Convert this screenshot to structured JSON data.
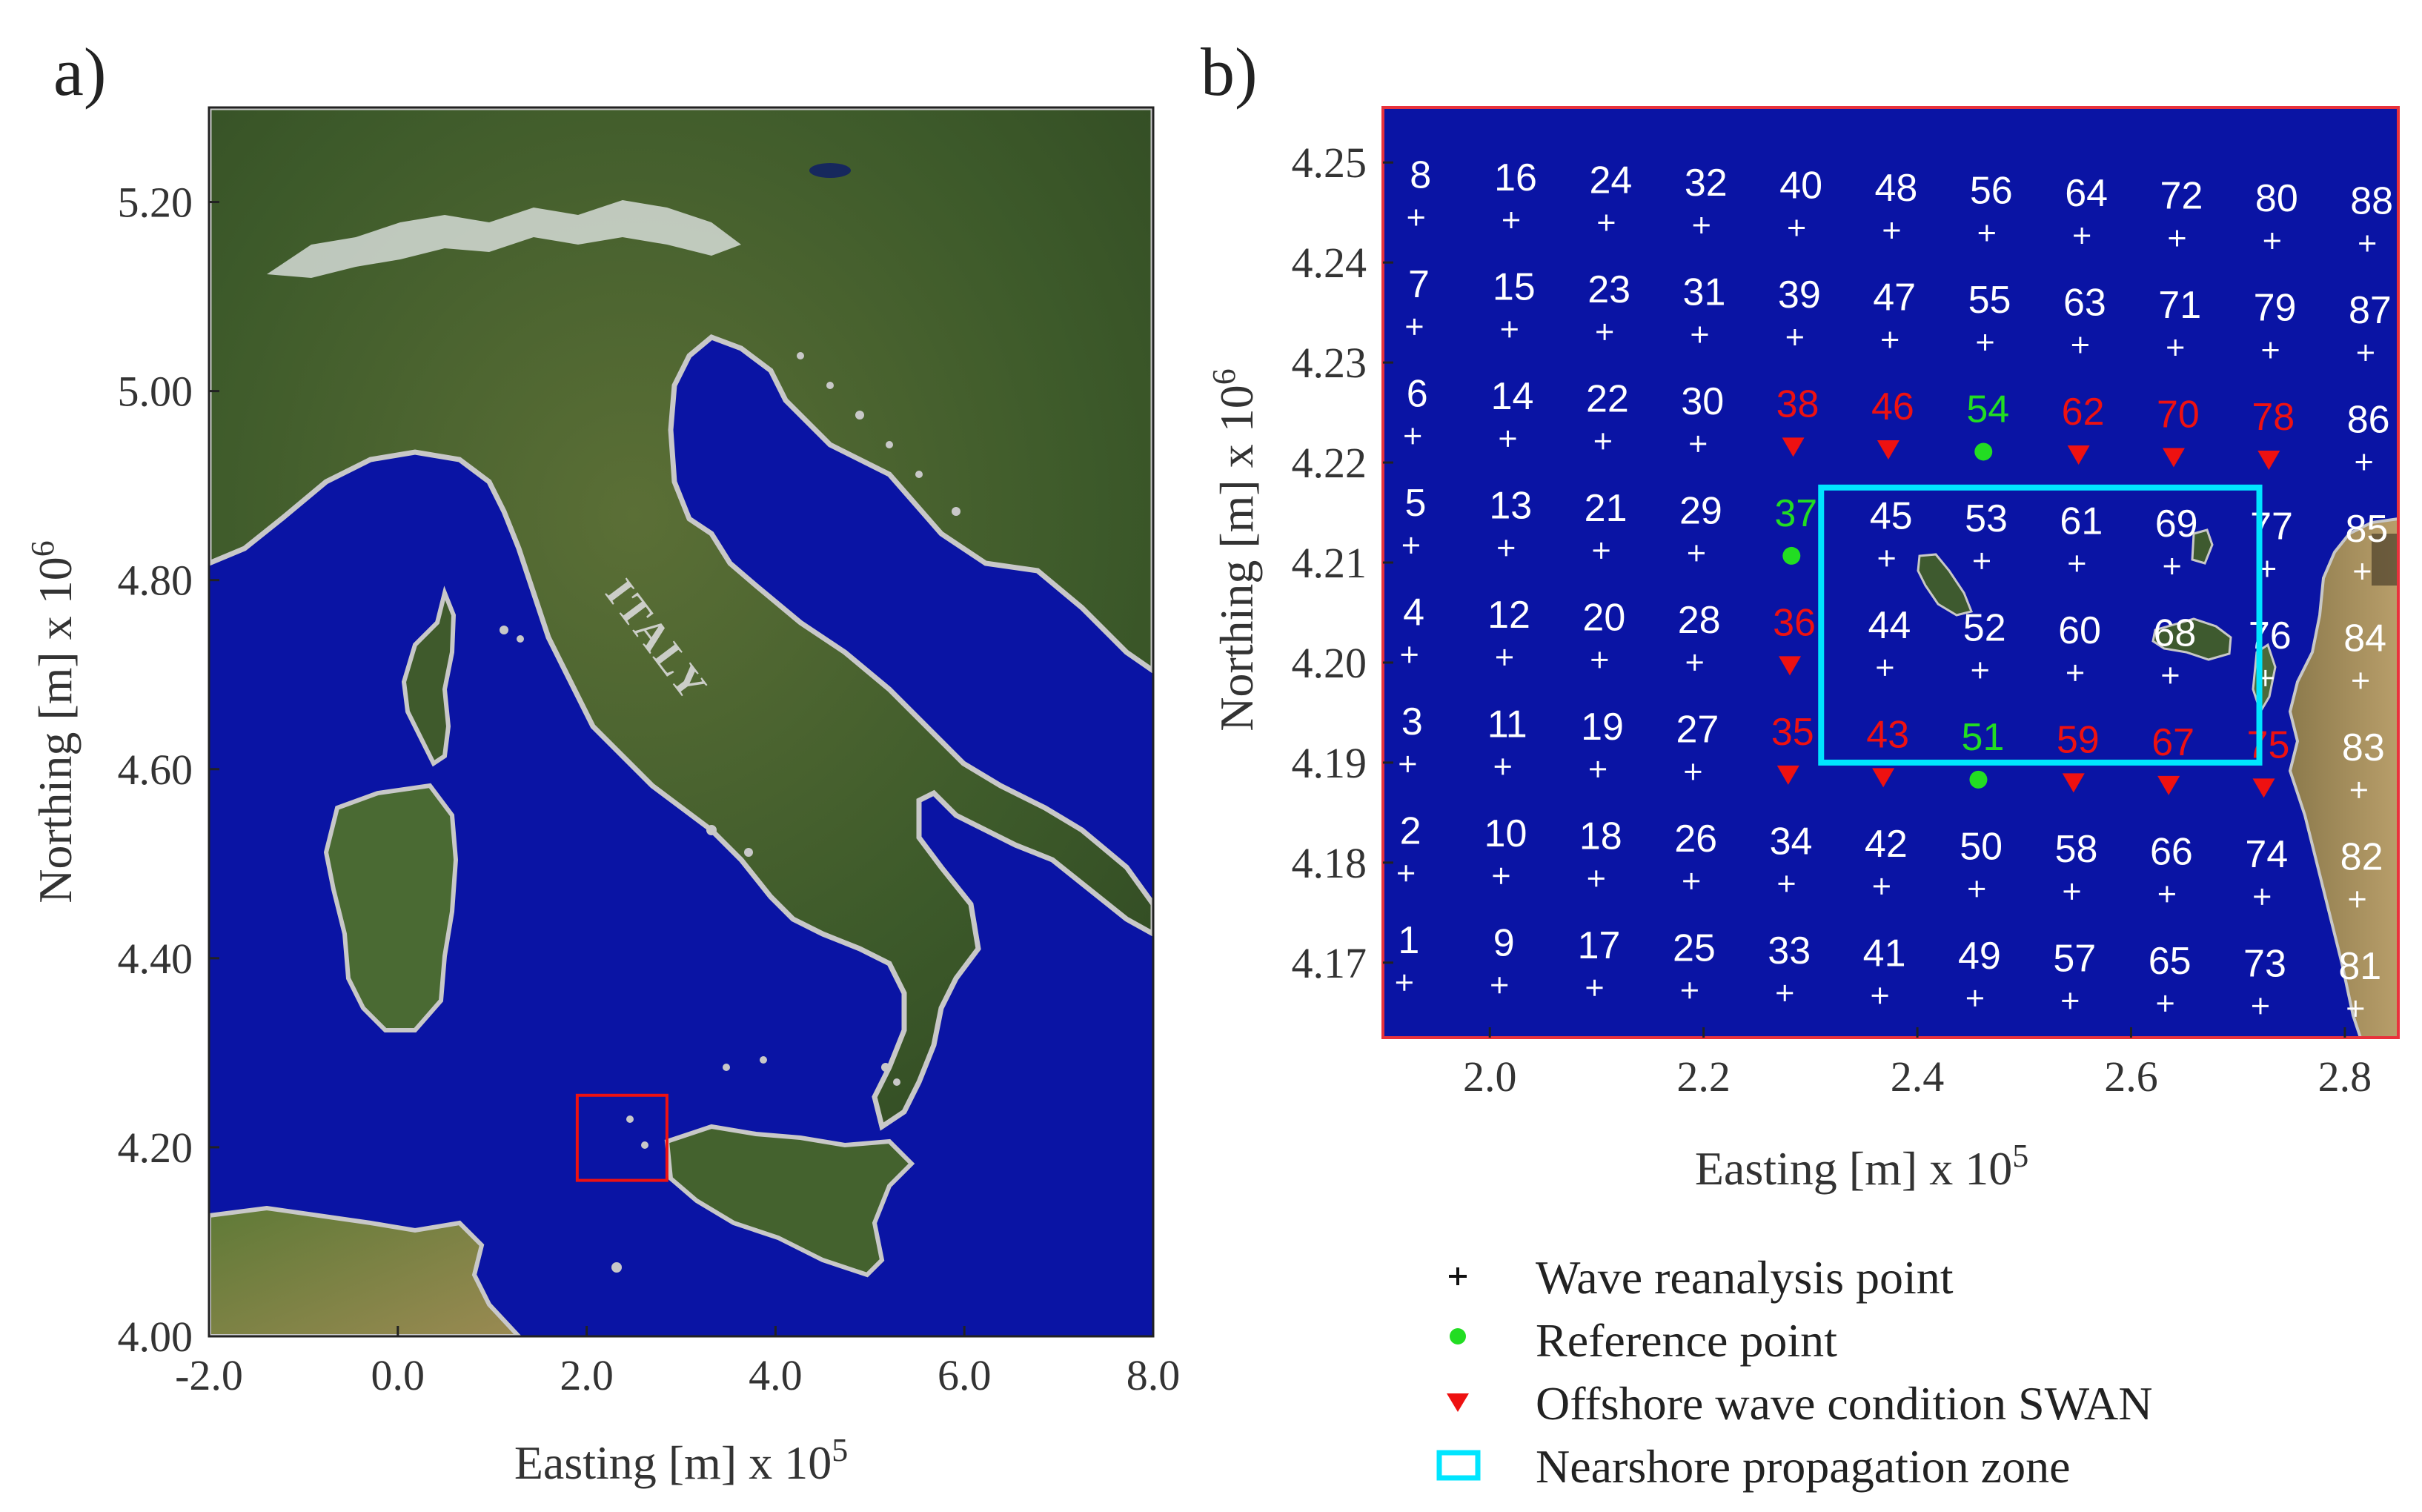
{
  "colors": {
    "sea": "#0a14a4",
    "land": "#3b5a2a",
    "coast": "#c8c8c8",
    "frame_a": "#222222",
    "frame_b": "#e8323c",
    "zone": "#00e5ff",
    "grid_point": "#ffffff",
    "reference": "#22dd22",
    "offshore": "#ee1111"
  },
  "panel_a": {
    "tag": "a)",
    "xlabel": "Easting [m] x 10",
    "xlabel_exp": "5",
    "ylabel": "Northing [m] x 10",
    "ylabel_exp": "6",
    "xticks": [
      "-2.0",
      "0.0",
      "2.0",
      "4.0",
      "6.0",
      "8.0"
    ],
    "xtick_values": [
      -2.0,
      0.0,
      2.0,
      4.0,
      6.0,
      8.0
    ],
    "yticks": [
      "4.00",
      "4.20",
      "4.40",
      "4.60",
      "4.80",
      "5.00",
      "5.20"
    ],
    "ytick_values": [
      4.0,
      4.2,
      4.4,
      4.6,
      4.8,
      5.0,
      5.2
    ],
    "xlim": [
      -2.0,
      8.0
    ],
    "ylim": [
      4.0,
      5.3
    ],
    "country_label": "ITALY",
    "study_box": {
      "x": [
        1.9,
        2.85
      ],
      "y": [
        4.165,
        4.255
      ]
    }
  },
  "panel_b": {
    "tag": "b)",
    "xlabel": "Easting [m] x 10",
    "xlabel_exp": "5",
    "ylabel": "Northing [m] x 10",
    "ylabel_exp": "6",
    "xticks": [
      "2.0",
      "2.2",
      "2.4",
      "2.6",
      "2.8"
    ],
    "xtick_values": [
      2.0,
      2.2,
      2.4,
      2.6,
      2.8
    ],
    "yticks": [
      "4.17",
      "4.18",
      "4.19",
      "4.20",
      "4.21",
      "4.22",
      "4.23",
      "4.24",
      "4.25"
    ],
    "ytick_values": [
      4.17,
      4.18,
      4.19,
      4.2,
      4.21,
      4.22,
      4.23,
      4.24,
      4.25
    ],
    "xlim": [
      1.9,
      2.85
    ],
    "ylim": [
      4.1625,
      4.2555
    ],
    "grid": {
      "columns": 11,
      "rows": 8,
      "x_start": 1.92,
      "x_end": 2.81,
      "y_start": 4.168,
      "y_end": 4.2445,
      "x_tilt": 0.011,
      "y_tilt": -0.0026
    },
    "reference_points": [
      37,
      51,
      54
    ],
    "offshore_points": [
      35,
      36,
      38,
      43,
      46,
      59,
      62,
      67,
      70,
      75,
      78
    ],
    "nearshore_zone": {
      "x": [
        2.31,
        2.72
      ],
      "y": [
        4.19,
        4.2175
      ]
    }
  },
  "legend": [
    {
      "marker": "plus",
      "label": "Wave reanalysis point"
    },
    {
      "marker": "dot",
      "label": "Reference point"
    },
    {
      "marker": "triangle",
      "label": "Offshore wave condition SWAN"
    },
    {
      "marker": "square",
      "label": "Nearshore propagation zone"
    }
  ]
}
